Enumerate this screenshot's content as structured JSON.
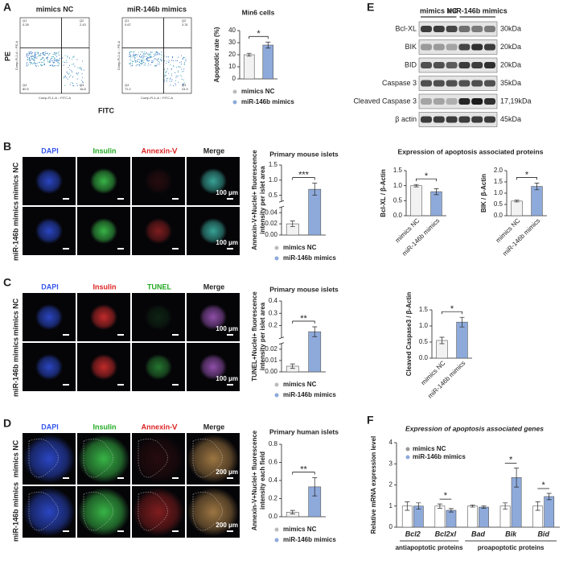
{
  "panel_labels": [
    "A",
    "B",
    "C",
    "D",
    "E",
    "F"
  ],
  "flow": {
    "columns": [
      "mimics NC",
      "miR-146b mimics"
    ],
    "y_label": "PE",
    "x_label": "FITC",
    "plot_x_axis": "Comp-FL1-A :: FITC-A",
    "plot_y_axis": "Comp-FL2-A :: PE-A",
    "quadrant_names": [
      "Q1",
      "Q2",
      "Q3",
      "Q4"
    ],
    "quadrants": [
      [
        0.28,
        2.43,
        16.8,
        80.5
      ],
      [
        0.67,
        3.31,
        24.9,
        72.2
      ]
    ]
  },
  "microscopy": [
    {
      "columns": [
        "DAPI",
        "Insulin",
        "Annexin-Ⅴ",
        "Merge"
      ],
      "rows": [
        "mimics NC",
        "miR-146b mimics"
      ],
      "scale_bar": "100 μm"
    },
    {
      "columns": [
        "DAPI",
        "Insulin",
        "TUNEL",
        "Merge"
      ],
      "rows": [
        "mimics NC",
        "miR-146b mimics"
      ],
      "scale_bar": "100 μm"
    },
    {
      "columns": [
        "DAPI",
        "Insulin",
        "Annexin-Ⅴ",
        "Merge"
      ],
      "rows": [
        "mimics NC",
        "miR-146b mimics"
      ],
      "scale_bar": "200 μm"
    }
  ],
  "blot": {
    "groups": [
      "mimics NC",
      "miR-146b mimics"
    ],
    "proteins": [
      {
        "name": "Bcl-XL",
        "size": "30kDa"
      },
      {
        "name": "BIK",
        "size": "20kDa"
      },
      {
        "name": "BID",
        "size": "20kDa"
      },
      {
        "name": "Caspase 3",
        "size": "35kDa"
      },
      {
        "name": "Cleaved Caspase 3",
        "size": "17,19kDa"
      },
      {
        "name": "β actin",
        "size": "45kDa"
      }
    ],
    "title": "Expression of apoptosis associated proteins"
  },
  "chart_data": [
    {
      "type": "bar",
      "title": "Min6 cells",
      "ylabel": [
        "Apoptotic rate (%)"
      ],
      "categories": [
        "mimics NC",
        "miR-146b mimics"
      ],
      "values": [
        20,
        28
      ],
      "errors": [
        1.2,
        2.5
      ],
      "colors": [
        "#f2f2f2",
        "#8eaadb"
      ],
      "ylim": [
        0,
        40
      ],
      "yticks": [
        0,
        10,
        20,
        30,
        40
      ],
      "significance": "*",
      "legend": "below"
    },
    {
      "type": "bar",
      "title": "Primary mouse islets",
      "ylabel": [
        "Annexin-V+Nuclei+ fluorescence",
        "intensity per islet area"
      ],
      "categories": [
        "mimics NC",
        "miR-146b mimics"
      ],
      "values": [
        0.02,
        0.7
      ],
      "errors": [
        0.005,
        0.2
      ],
      "colors": [
        "#f2f2f2",
        "#8eaadb"
      ],
      "ylim": [
        0,
        1.5
      ],
      "axis_break": [
        0.05,
        0.3
      ],
      "yticks": [
        {
          "value": 0,
          "label": "0.00"
        },
        {
          "value": 0.02,
          "label": "0.02"
        },
        {
          "value": 0.04,
          "label": "0.04"
        },
        0.5,
        {
          "value": 1,
          "label": "1.0"
        },
        1.5
      ],
      "significance": "***",
      "legend": "below"
    },
    {
      "type": "bar",
      "title": "Primary mouse islets",
      "ylabel": [
        "TUNEL+Nuclei+ fluorescence",
        "intensity per islet area"
      ],
      "categories": [
        "mimics NC",
        "miR-146b mimics"
      ],
      "values": [
        0.005,
        0.15
      ],
      "errors": [
        0.002,
        0.04
      ],
      "colors": [
        "#f2f2f2",
        "#8eaadb"
      ],
      "ylim": [
        0,
        0.4
      ],
      "axis_break": [
        0.025,
        0.1
      ],
      "yticks": [
        {
          "value": 0,
          "label": "0.00"
        },
        {
          "value": 0.01,
          "label": "0.01"
        },
        {
          "value": 0.02,
          "label": "0.02"
        },
        0.2,
        0.3,
        0.4
      ],
      "significance": "**",
      "legend": "below"
    },
    {
      "type": "bar",
      "title": "Primary human islets",
      "ylabel": [
        "Annexin-V+Nuclei+ fluorescence",
        "intensity each field"
      ],
      "categories": [
        "mimics NC",
        "miR-146b mimics"
      ],
      "values": [
        0.05,
        0.33
      ],
      "errors": [
        0.02,
        0.1
      ],
      "colors": [
        "#f2f2f2",
        "#8eaadb"
      ],
      "ylim": [
        0,
        0.8
      ],
      "yticks": [
        {
          "value": 0,
          "label": "0.0"
        },
        0.2,
        0.4,
        0.6,
        0.8
      ],
      "significance": "**",
      "legend": "below"
    },
    {
      "type": "bar",
      "ylabel": [
        "Bcl-XL / β-Actin"
      ],
      "categories": [
        "mimics NC",
        "miR-146b mimics"
      ],
      "values": [
        1.0,
        0.8
      ],
      "errors": [
        0.04,
        0.1
      ],
      "colors": [
        "#f2f2f2",
        "#8eaadb"
      ],
      "ylim": [
        0,
        1.5
      ],
      "yticks": [
        {
          "value": 0,
          "label": "0.0"
        },
        0.5,
        {
          "value": 1,
          "label": "1.0"
        },
        1.5
      ],
      "significance": "*",
      "legend": "none"
    },
    {
      "type": "bar",
      "ylabel": [
        "BIK / β-Actin"
      ],
      "categories": [
        "mimics NC",
        "miR-146b mimics"
      ],
      "values": [
        0.65,
        1.3
      ],
      "errors": [
        0.04,
        0.15
      ],
      "colors": [
        "#f2f2f2",
        "#8eaadb"
      ],
      "ylim": [
        0,
        2
      ],
      "yticks": [
        {
          "value": 0,
          "label": "0.0"
        },
        0.5,
        {
          "value": 1,
          "label": "1.0"
        },
        1.5,
        {
          "value": 2,
          "label": "2.0"
        }
      ],
      "significance": "*",
      "legend": "none"
    },
    {
      "type": "bar",
      "ylabel": [
        "Cleaved Caspase3 / β-Actin"
      ],
      "categories": [
        "mimics NC",
        "miR-146b mimics"
      ],
      "values": [
        0.55,
        1.12
      ],
      "errors": [
        0.1,
        0.15
      ],
      "colors": [
        "#f2f2f2",
        "#8eaadb"
      ],
      "ylim": [
        0,
        1.5
      ],
      "yticks": [
        {
          "value": 0,
          "label": "0.0"
        },
        0.5,
        {
          "value": 1,
          "label": "1.0"
        },
        1.5
      ],
      "significance": "*",
      "legend": "none"
    },
    {
      "type": "grouped_bar",
      "title": "Expression of apoptosis associated genes",
      "ylabel": [
        "Relative mRNA expression level"
      ],
      "categories": [
        "Bcl2",
        "Bcl2xl",
        "Bad",
        "Bik",
        "Bid"
      ],
      "series": [
        {
          "name": "mimics NC",
          "color": "#ffffff",
          "values": [
            1.0,
            1.0,
            1.0,
            1.0,
            1.0
          ],
          "errors": [
            0.2,
            0.1,
            0.05,
            0.15,
            0.2
          ]
        },
        {
          "name": "miR-146b mimics",
          "color": "#8eaadb",
          "values": [
            1.0,
            0.8,
            0.95,
            2.35,
            1.45
          ],
          "errors": [
            0.15,
            0.08,
            0.05,
            0.45,
            0.15
          ]
        }
      ],
      "ylim": [
        0,
        4
      ],
      "yticks": [
        0,
        1,
        2,
        3,
        4
      ],
      "significance": [
        null,
        "*",
        null,
        "*",
        "*"
      ],
      "groups": [
        "antiapoptotic proteins",
        "proapoptotic proteins"
      ],
      "legend": "top-left"
    }
  ]
}
